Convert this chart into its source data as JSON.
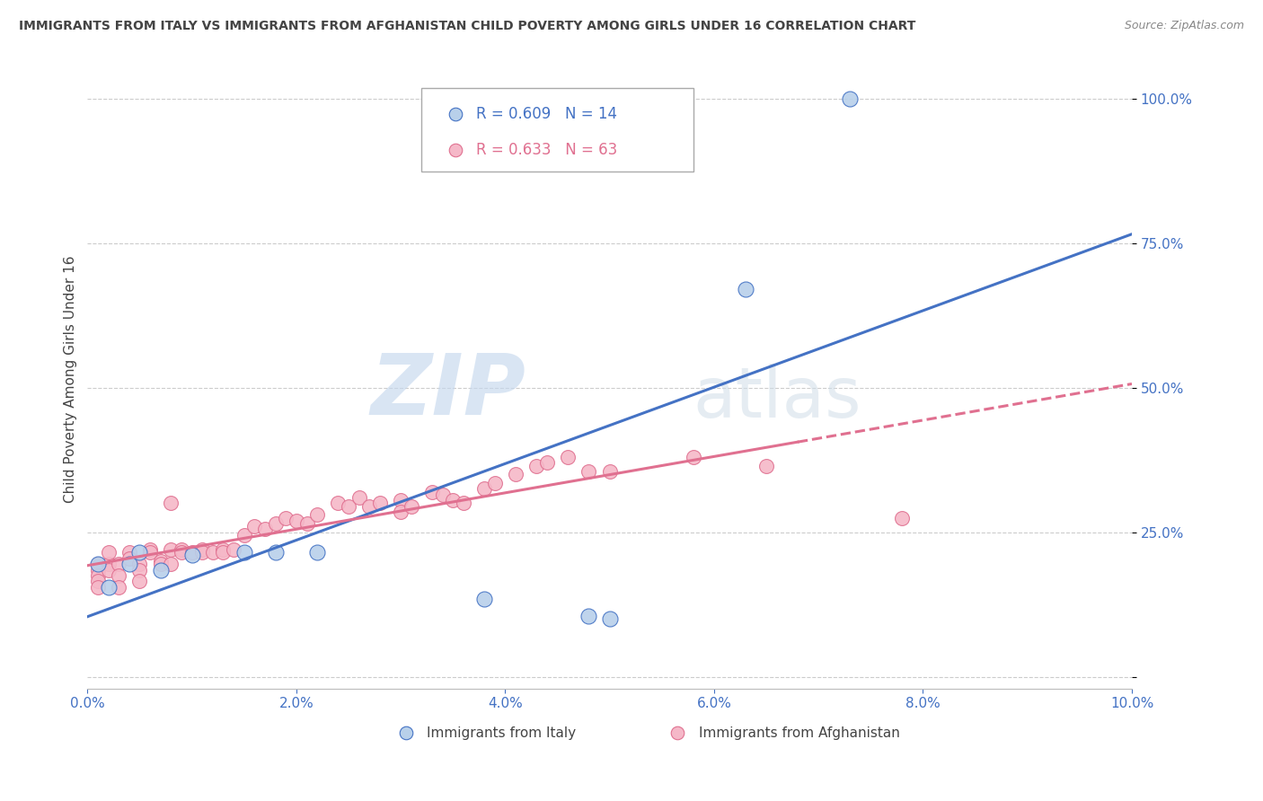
{
  "title": "IMMIGRANTS FROM ITALY VS IMMIGRANTS FROM AFGHANISTAN CHILD POVERTY AMONG GIRLS UNDER 16 CORRELATION CHART",
  "source": "Source: ZipAtlas.com",
  "ylabel": "Child Poverty Among Girls Under 16",
  "watermark_zip": "ZIP",
  "watermark_atlas": "atlas",
  "italy_R": 0.609,
  "italy_N": 14,
  "afghanistan_R": 0.633,
  "afghanistan_N": 63,
  "italy_color": "#b8d0ea",
  "afghanistan_color": "#f5b8c8",
  "italy_line_color": "#4472c4",
  "afghanistan_line_color": "#e07090",
  "axis_label_color": "#4472c4",
  "title_color": "#444444",
  "grid_color": "#cccccc",
  "italy_x": [
    0.001,
    0.002,
    0.004,
    0.005,
    0.007,
    0.01,
    0.015,
    0.018,
    0.022,
    0.038,
    0.048,
    0.05,
    0.063,
    0.073
  ],
  "italy_y": [
    0.195,
    0.155,
    0.195,
    0.215,
    0.185,
    0.21,
    0.215,
    0.215,
    0.215,
    0.135,
    0.105,
    0.1,
    0.67,
    1.0
  ],
  "afg_x": [
    0.001,
    0.001,
    0.001,
    0.001,
    0.001,
    0.002,
    0.002,
    0.002,
    0.003,
    0.003,
    0.003,
    0.004,
    0.004,
    0.005,
    0.005,
    0.005,
    0.006,
    0.006,
    0.007,
    0.007,
    0.008,
    0.008,
    0.008,
    0.009,
    0.009,
    0.01,
    0.011,
    0.011,
    0.012,
    0.013,
    0.013,
    0.014,
    0.015,
    0.016,
    0.017,
    0.018,
    0.019,
    0.02,
    0.021,
    0.022,
    0.024,
    0.025,
    0.026,
    0.027,
    0.028,
    0.03,
    0.03,
    0.031,
    0.033,
    0.034,
    0.035,
    0.036,
    0.038,
    0.039,
    0.041,
    0.043,
    0.044,
    0.046,
    0.048,
    0.05,
    0.058,
    0.065,
    0.078
  ],
  "afg_y": [
    0.195,
    0.185,
    0.175,
    0.165,
    0.155,
    0.195,
    0.185,
    0.215,
    0.195,
    0.175,
    0.155,
    0.215,
    0.205,
    0.195,
    0.185,
    0.165,
    0.22,
    0.215,
    0.2,
    0.195,
    0.3,
    0.22,
    0.195,
    0.22,
    0.215,
    0.215,
    0.22,
    0.215,
    0.215,
    0.22,
    0.215,
    0.22,
    0.245,
    0.26,
    0.255,
    0.265,
    0.275,
    0.27,
    0.265,
    0.28,
    0.3,
    0.295,
    0.31,
    0.295,
    0.3,
    0.305,
    0.285,
    0.295,
    0.32,
    0.315,
    0.305,
    0.3,
    0.325,
    0.335,
    0.35,
    0.365,
    0.37,
    0.38,
    0.355,
    0.355,
    0.38,
    0.365,
    0.275
  ],
  "xlim": [
    0.0,
    0.1
  ],
  "ylim": [
    -0.02,
    1.05
  ],
  "yticks": [
    0.0,
    0.25,
    0.5,
    0.75,
    1.0
  ],
  "ytick_labels": [
    "",
    "25.0%",
    "50.0%",
    "75.0%",
    "100.0%"
  ],
  "xticks": [
    0.0,
    0.02,
    0.04,
    0.06,
    0.08,
    0.1
  ],
  "xtick_labels": [
    "0.0%",
    "2.0%",
    "4.0%",
    "6.0%",
    "8.0%",
    "10.0%"
  ]
}
